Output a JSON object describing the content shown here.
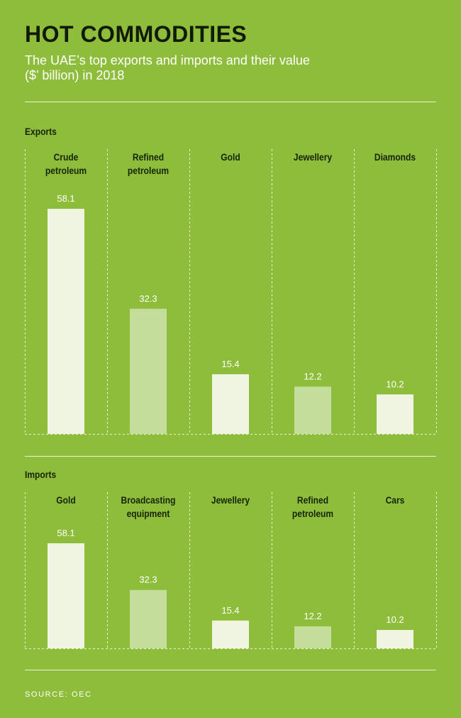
{
  "title": "HOT COMMODITIES",
  "subtitle": "The UAE’s top exports and imports and their value ($’ billion) in 2018",
  "source": "SOURCE: OEC",
  "colors": {
    "background": "#8dbd3a",
    "bar_light": "#eff5e1",
    "bar_mid": "#c5dd9a",
    "rule": "#e9f3d4"
  },
  "chart_data": [
    {
      "type": "bar",
      "section": "Exports",
      "categories": [
        [
          "Crude",
          "petroleum"
        ],
        [
          "Refined",
          "petroleum"
        ],
        [
          "Gold"
        ],
        [
          "Jewellery"
        ],
        [
          "Diamonds"
        ]
      ],
      "values": [
        58.1,
        32.3,
        15.4,
        12.2,
        10.2
      ],
      "value_labels": [
        "58.1",
        "32.3",
        "15.4",
        "12.2",
        "10.2"
      ],
      "bar_shades": [
        "light",
        "mid",
        "light",
        "mid",
        "light"
      ],
      "ylim": [
        0,
        58.1
      ],
      "grid": "dashed vertical separators"
    },
    {
      "type": "bar",
      "section": "Imports",
      "categories": [
        [
          "Gold"
        ],
        [
          "Broadcasting",
          "equipment"
        ],
        [
          "Jewellery"
        ],
        [
          "Refined",
          "petroleum"
        ],
        [
          "Cars"
        ]
      ],
      "values": [
        58.1,
        32.3,
        15.4,
        12.2,
        10.2
      ],
      "value_labels": [
        "58.1",
        "32.3",
        "15.4",
        "12.2",
        "10.2"
      ],
      "bar_shades": [
        "light",
        "mid",
        "light",
        "mid",
        "light"
      ],
      "ylim": [
        0,
        58.1
      ],
      "grid": "dashed vertical separators"
    }
  ]
}
